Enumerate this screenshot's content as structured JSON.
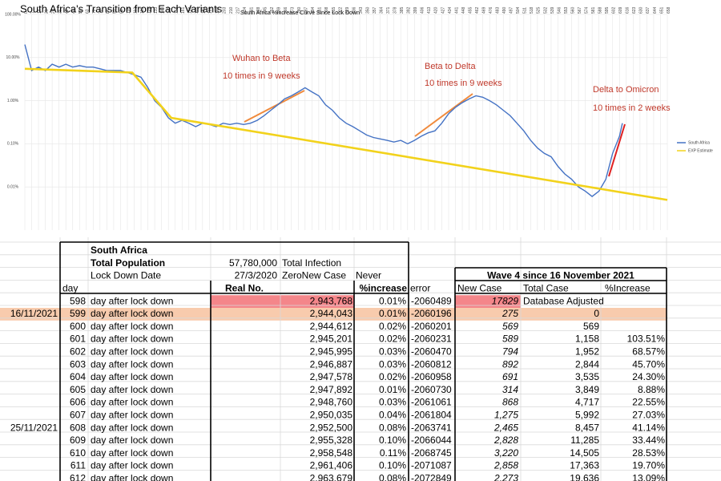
{
  "header": {
    "title": "South Africa's Transition from Each Variants"
  },
  "chart_data": {
    "type": "line",
    "title": "South Africa %increase Curve Since Lock Down",
    "log_scale": true,
    "grid": true,
    "legend": "right",
    "xlim": [
      0,
      658
    ],
    "xticks": [
      0,
      7,
      14,
      21,
      28,
      35,
      42,
      49,
      56,
      63,
      70,
      77,
      84,
      91,
      98,
      105,
      112,
      119,
      126,
      133,
      140,
      147,
      154,
      161,
      168,
      175,
      182,
      189,
      196,
      203,
      210,
      217,
      224,
      231,
      238,
      245,
      252,
      259,
      266,
      273,
      280,
      287,
      294,
      301,
      308,
      315,
      322,
      329,
      336,
      343,
      350,
      357,
      364,
      371,
      378,
      385,
      392,
      399,
      406,
      413,
      420,
      427,
      434,
      441,
      448,
      455,
      462,
      469,
      476,
      483,
      490,
      497,
      504,
      511,
      518,
      525,
      532,
      539,
      546,
      553,
      560,
      567,
      574,
      581,
      588,
      595,
      602,
      609,
      616,
      623,
      630,
      637,
      644,
      651,
      658
    ],
    "ylim": [
      0.001,
      100
    ],
    "yticks": [
      {
        "value": 100,
        "label": "100.00%"
      },
      {
        "value": 10,
        "label": "10.00%"
      },
      {
        "value": 1,
        "label": "1.00%"
      },
      {
        "value": 0.1,
        "label": "0.10%"
      },
      {
        "value": 0.01,
        "label": "0.01%"
      }
    ],
    "series": [
      {
        "name": "South Africa",
        "color": "#4472c4",
        "x": [
          0,
          7,
          14,
          21,
          28,
          35,
          42,
          49,
          56,
          63,
          70,
          77,
          84,
          91,
          98,
          105,
          112,
          119,
          126,
          133,
          140,
          147,
          154,
          161,
          168,
          175,
          182,
          189,
          196,
          203,
          210,
          217,
          224,
          231,
          238,
          245,
          252,
          259,
          266,
          273,
          280,
          287,
          294,
          301,
          308,
          315,
          322,
          329,
          336,
          343,
          350,
          357,
          364,
          371,
          378,
          385,
          392,
          399,
          406,
          413,
          420,
          427,
          434,
          441,
          448,
          455,
          462,
          469,
          476,
          483,
          490,
          497,
          504,
          511,
          518,
          525,
          532,
          539,
          546,
          553,
          560,
          567,
          574,
          581,
          588,
          595,
          602,
          609,
          612
        ],
        "values": [
          20,
          5,
          6,
          5,
          7,
          6,
          7,
          6,
          6.5,
          6,
          6,
          5.5,
          5,
          5,
          5,
          4.5,
          4,
          3.5,
          2,
          1,
          0.7,
          0.4,
          0.3,
          0.35,
          0.3,
          0.25,
          0.3,
          0.28,
          0.25,
          0.3,
          0.28,
          0.3,
          0.28,
          0.3,
          0.35,
          0.45,
          0.6,
          0.8,
          1.1,
          1.3,
          1.6,
          2,
          1.6,
          1.3,
          0.8,
          0.6,
          0.4,
          0.3,
          0.25,
          0.2,
          0.16,
          0.14,
          0.13,
          0.12,
          0.11,
          0.12,
          0.1,
          0.12,
          0.15,
          0.18,
          0.2,
          0.3,
          0.5,
          0.7,
          0.9,
          1.1,
          1.3,
          1.2,
          1,
          0.8,
          0.6,
          0.45,
          0.3,
          0.2,
          0.12,
          0.08,
          0.06,
          0.05,
          0.03,
          0.02,
          0.015,
          0.01,
          0.008,
          0.006,
          0.008,
          0.015,
          0.06,
          0.15,
          0.3
        ]
      },
      {
        "name": "EXP Estimate",
        "color": "#f2d21b",
        "x": [
          0,
          110,
          150,
          658
        ],
        "values": [
          5.5,
          4.5,
          0.4,
          0.005
        ]
      }
    ],
    "annotations": [
      "Wuhan to Beta",
      "10 times in 9 weeks",
      "Beta to Delta",
      "10 times in 9 weeks",
      "Delta to Omicron",
      "10 times in 2 weeks"
    ]
  },
  "table": {
    "info": {
      "country": "South Africa",
      "population_label": "Total Population",
      "population": "57,780,000",
      "infection_label": "Total Infection",
      "lockdown_label": "Lock Down Date",
      "lockdown_date": "27/3/2020",
      "zero_label": "ZeroNew Case",
      "zero_value": "Never"
    },
    "wave_title": "Wave 4 since 16 November 2021",
    "columns": {
      "day": "day",
      "real": "Real No.",
      "increase": "%increase",
      "error": "error",
      "new_case": "New Case",
      "total_case": "Total Case",
      "pct_increase": "%Increase"
    },
    "rows": [
      {
        "day": "598",
        "label": "day after lock down",
        "real": "2,943,768",
        "increase": "0.01%",
        "error": "-2060489",
        "new_case": "17829",
        "total_case": "Database Adjusted"
      },
      {
        "date": "16/11/2021",
        "day": "599",
        "label": "day after lock down",
        "real": "2,944,043",
        "increase": "0.01%",
        "error": "-2060196",
        "new_case": "275",
        "total_case": "0"
      },
      {
        "day": "600",
        "label": "day after lock down",
        "real": "2,944,612",
        "increase": "0.02%",
        "error": "-2060201",
        "new_case": "569",
        "total_case": "569"
      },
      {
        "day": "601",
        "label": "day after lock down",
        "real": "2,945,201",
        "increase": "0.02%",
        "error": "-2060231",
        "new_case": "589",
        "total_case": "1,158",
        "pct_increase": "103.51%"
      },
      {
        "day": "602",
        "label": "day after lock down",
        "real": "2,945,995",
        "increase": "0.03%",
        "error": "-2060470",
        "new_case": "794",
        "total_case": "1,952",
        "pct_increase": "68.57%"
      },
      {
        "day": "603",
        "label": "day after lock down",
        "real": "2,946,887",
        "increase": "0.03%",
        "error": "-2060812",
        "new_case": "892",
        "total_case": "2,844",
        "pct_increase": "45.70%"
      },
      {
        "day": "604",
        "label": "day after lock down",
        "real": "2,947,578",
        "increase": "0.02%",
        "error": "-2060958",
        "new_case": "691",
        "total_case": "3,535",
        "pct_increase": "24.30%"
      },
      {
        "day": "605",
        "label": "day after lock down",
        "real": "2,947,892",
        "increase": "0.01%",
        "error": "-2060730",
        "new_case": "314",
        "total_case": "3,849",
        "pct_increase": "8.88%"
      },
      {
        "day": "606",
        "label": "day after lock down",
        "real": "2,948,760",
        "increase": "0.03%",
        "error": "-2061061",
        "new_case": "868",
        "total_case": "4,717",
        "pct_increase": "22.55%"
      },
      {
        "day": "607",
        "label": "day after lock down",
        "real": "2,950,035",
        "increase": "0.04%",
        "error": "-2061804",
        "new_case": "1,275",
        "total_case": "5,992",
        "pct_increase": "27.03%"
      },
      {
        "date": "25/11/2021",
        "day": "608",
        "label": "day after lock down",
        "real": "2,952,500",
        "increase": "0.08%",
        "error": "-2063741",
        "new_case": "2,465",
        "total_case": "8,457",
        "pct_increase": "41.14%"
      },
      {
        "day": "609",
        "label": "day after lock down",
        "real": "2,955,328",
        "increase": "0.10%",
        "error": "-2066044",
        "new_case": "2,828",
        "total_case": "11,285",
        "pct_increase": "33.44%"
      },
      {
        "day": "610",
        "label": "day after lock down",
        "real": "2,958,548",
        "increase": "0.11%",
        "error": "-2068745",
        "new_case": "3,220",
        "total_case": "14,505",
        "pct_increase": "28.53%"
      },
      {
        "day": "611",
        "label": "day after lock down",
        "real": "2,961,406",
        "increase": "0.10%",
        "error": "-2071087",
        "new_case": "2,858",
        "total_case": "17,363",
        "pct_increase": "19.70%"
      },
      {
        "day": "612",
        "label": "day after lock down",
        "real": "2,963,679",
        "increase": "0.08%",
        "error": "-2072849",
        "new_case": "2,273",
        "total_case": "19,636",
        "pct_increase": "13.09%"
      }
    ]
  }
}
